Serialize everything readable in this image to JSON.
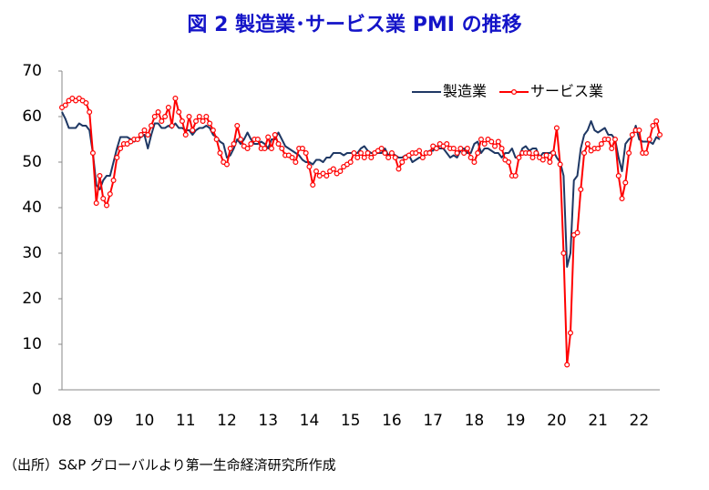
{
  "chart_data": {
    "type": "line",
    "title": "図 2  製造業･サービス業 PMI の推移",
    "note": "（出所）S&P グローバルより第一生命経済研究所作成",
    "categories": [
      "08",
      null,
      null,
      null,
      null,
      null,
      null,
      null,
      null,
      null,
      null,
      null,
      "09",
      null,
      null,
      null,
      null,
      null,
      null,
      null,
      null,
      null,
      null,
      null,
      "10",
      null,
      null,
      null,
      null,
      null,
      null,
      null,
      null,
      null,
      null,
      null,
      "11",
      null,
      null,
      null,
      null,
      null,
      null,
      null,
      null,
      null,
      null,
      null,
      "12",
      null,
      null,
      null,
      null,
      null,
      null,
      null,
      null,
      null,
      null,
      null,
      "13",
      null,
      null,
      null,
      null,
      null,
      null,
      null,
      null,
      null,
      null,
      null,
      "14",
      null,
      null,
      null,
      null,
      null,
      null,
      null,
      null,
      null,
      null,
      null,
      "15",
      null,
      null,
      null,
      null,
      null,
      null,
      null,
      null,
      null,
      null,
      null,
      "16",
      null,
      null,
      null,
      null,
      null,
      null,
      null,
      null,
      null,
      null,
      null,
      "17",
      null,
      null,
      null,
      null,
      null,
      null,
      null,
      null,
      null,
      null,
      null,
      "18",
      null,
      null,
      null,
      null,
      null,
      null,
      null,
      null,
      null,
      null,
      null,
      "19",
      null,
      null,
      null,
      null,
      null,
      null,
      null,
      null,
      null,
      null,
      null,
      "20",
      null,
      null,
      null,
      null,
      null,
      null,
      null,
      null,
      null,
      null,
      null,
      "21",
      null,
      null,
      null,
      null,
      null,
      null,
      null,
      null,
      null,
      null,
      null,
      "22",
      null,
      null,
      null,
      null,
      null,
      null
    ],
    "series": [
      {
        "name": "製造業",
        "color": "#1f3864",
        "markers": false,
        "values": [
          61,
          59.5,
          57.5,
          57.5,
          57.5,
          58.5,
          58,
          58,
          57,
          52,
          45,
          44,
          46,
          47,
          47,
          50,
          53,
          55.5,
          55.5,
          55.5,
          55,
          54.5,
          55,
          55.5,
          56,
          53,
          56,
          58.5,
          58.5,
          57.5,
          57.5,
          58,
          57.5,
          58.5,
          57.5,
          57.5,
          57,
          57,
          56,
          57,
          57.5,
          57.5,
          58,
          57.5,
          56,
          55.5,
          54.5,
          54,
          51,
          51.5,
          53,
          55,
          54,
          55,
          56.5,
          55,
          54,
          54,
          54.5,
          54,
          53,
          55,
          55,
          56.5,
          55,
          53.5,
          53,
          52.5,
          52,
          51.5,
          50.5,
          50,
          50,
          49.5,
          50.5,
          50.5,
          50,
          51,
          51,
          52,
          52,
          52,
          51.5,
          52,
          52,
          52,
          52,
          53,
          53.5,
          52.5,
          52,
          52,
          52,
          52,
          53,
          51.5,
          52,
          51.5,
          51,
          51,
          51.5,
          51.5,
          50,
          50.5,
          51,
          51,
          52,
          52.5,
          52.5,
          53.5,
          53,
          53,
          52,
          51,
          51.5,
          51,
          52.5,
          53,
          52,
          52,
          54,
          54.5,
          52,
          53,
          53,
          52.5,
          52,
          52,
          51,
          52,
          52,
          53,
          51,
          51,
          53,
          53.5,
          52.5,
          53,
          53,
          51,
          52,
          52,
          52,
          52.5,
          51,
          50,
          47,
          27,
          30,
          46,
          47,
          53,
          56,
          57,
          59,
          57,
          56.5,
          57,
          57.5,
          56,
          56,
          55,
          51,
          48,
          54,
          55,
          55.5,
          58,
          55,
          54.5,
          54.5,
          54.5,
          54,
          55.5,
          55
        ]
      },
      {
        "name": "サービス業",
        "color": "#ff0000",
        "markers": true,
        "values": [
          62,
          62.5,
          63.5,
          64,
          63.5,
          64,
          63.5,
          63,
          61,
          52,
          41,
          47,
          42,
          40.5,
          43,
          46,
          51,
          53,
          54,
          54,
          54.5,
          55,
          55,
          56,
          57,
          56,
          58,
          60,
          61,
          59,
          60,
          62,
          58,
          64,
          61,
          59,
          56,
          60,
          57,
          59,
          60,
          59,
          60,
          58.5,
          57,
          55,
          52,
          50,
          49.5,
          53,
          54,
          58,
          55,
          53.5,
          53,
          54,
          55,
          55,
          53,
          53,
          55.5,
          53,
          56,
          54,
          53,
          51.5,
          51.5,
          51,
          50,
          53,
          53,
          52,
          49,
          45,
          48,
          47,
          47.5,
          47,
          48,
          48.5,
          47.5,
          48,
          49,
          49.5,
          50,
          52,
          51,
          52,
          51,
          52,
          51,
          52,
          52.5,
          53,
          52,
          51,
          52,
          51,
          48.5,
          50,
          51,
          51.5,
          52,
          52,
          52.5,
          51,
          52,
          52,
          53.5,
          53,
          54,
          53.5,
          54,
          53,
          53,
          52,
          53,
          52,
          53,
          51,
          50,
          52,
          55,
          54,
          55,
          54.5,
          53.5,
          54.5,
          53,
          50.5,
          50,
          47,
          47,
          51,
          52,
          52,
          52,
          51,
          52,
          51,
          50.5,
          51.5,
          50,
          52,
          57.5,
          49.5,
          30,
          5.5,
          12.5,
          34,
          34.5,
          44,
          52,
          54,
          52.5,
          53,
          53,
          54,
          55,
          55,
          53,
          55,
          47,
          42,
          45.5,
          52,
          56,
          57,
          57,
          52,
          52,
          55,
          58,
          59,
          56
        ]
      }
    ],
    "ylim": [
      0,
      70
    ],
    "yticks": [
      0,
      10,
      20,
      30,
      40,
      50,
      60,
      70
    ],
    "grid": false,
    "legend": "upper right"
  }
}
